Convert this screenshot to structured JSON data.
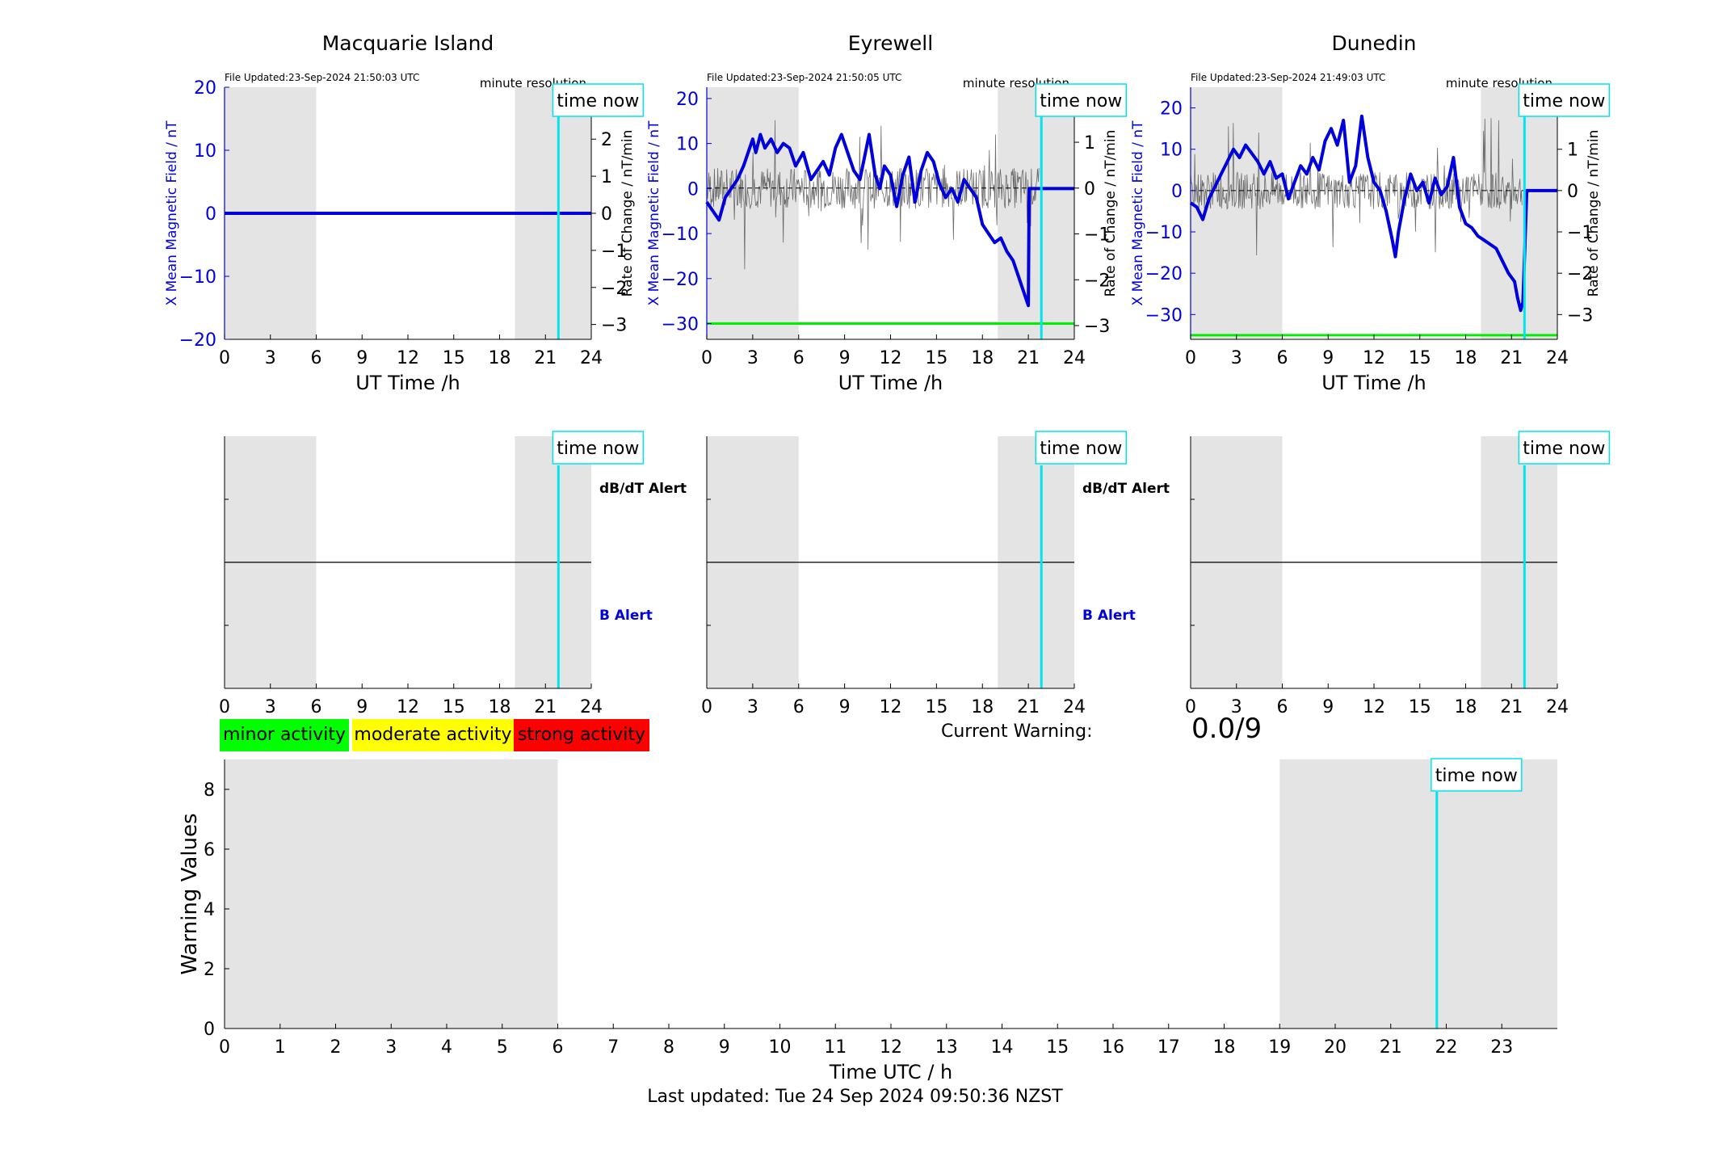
{
  "chart_data": [
    {
      "type": "line",
      "station": "Macquarie Island",
      "file_updated": "File Updated:23-Sep-2024 21:50:03 UTC",
      "resolution": "minute resolution",
      "xlabel": "UT Time /h",
      "ylabel_left": "X Mean Magnetic Field / nT",
      "ylabel_right": "Rate of Change / nT/min",
      "xlim": [
        0,
        24
      ],
      "xticks": [
        0,
        3,
        6,
        9,
        12,
        15,
        18,
        21,
        24
      ],
      "ylim_left": [
        -20,
        20
      ],
      "yticks_left": [
        -20,
        -10,
        0,
        10,
        20
      ],
      "ylim_right": [
        -3.4,
        3.4
      ],
      "yticks_right": [
        -3,
        -2,
        -1,
        0,
        1,
        2,
        3
      ],
      "night_bands": [
        [
          0,
          6
        ],
        [
          19,
          24
        ]
      ],
      "time_now": 21.85,
      "time_now_label": "time now",
      "threshold": null,
      "series": [
        {
          "role": "field",
          "x": [
            0,
            24
          ],
          "y": [
            0,
            0
          ],
          "color": "#0000dd"
        }
      ]
    },
    {
      "type": "line",
      "station": "Eyrewell",
      "file_updated": "File Updated:23-Sep-2024 21:50:05 UTC",
      "resolution": "minute resolution",
      "xlabel": "UT Time /h",
      "ylabel_left": "X Mean Magnetic Field / nT",
      "ylabel_right": "Rate of Change / nT/min",
      "xlim": [
        0,
        24
      ],
      "xticks": [
        0,
        3,
        6,
        9,
        12,
        15,
        18,
        21,
        24
      ],
      "ylim_left": [
        -33.5,
        22.5
      ],
      "yticks_left": [
        -30,
        -20,
        -10,
        0,
        10,
        20
      ],
      "ylim_right": [
        -3.3,
        2.2
      ],
      "yticks_right": [
        -3,
        -2,
        -1,
        0,
        1,
        2
      ],
      "night_bands": [
        [
          0,
          6
        ],
        [
          19,
          24
        ]
      ],
      "time_now": 21.85,
      "time_now_label": "time now",
      "threshold": -30,
      "series": [
        {
          "role": "field",
          "color": "#0000dd",
          "x": [
            0,
            0.4,
            0.8,
            1.2,
            1.6,
            2.0,
            2.4,
            2.8,
            3.0,
            3.2,
            3.5,
            3.8,
            4.2,
            4.6,
            5.0,
            5.4,
            5.8,
            6.3,
            6.8,
            7.2,
            7.6,
            8.0,
            8.4,
            8.8,
            9.2,
            9.6,
            10.0,
            10.3,
            10.6,
            11.0,
            11.3,
            11.6,
            12.0,
            12.4,
            12.8,
            13.2,
            13.6,
            14.0,
            14.4,
            14.8,
            15.2,
            15.6,
            16.0,
            16.4,
            16.8,
            17.2,
            17.6,
            18.0,
            18.4,
            18.8,
            19.2,
            19.6,
            20.0,
            20.4,
            20.8,
            21.0,
            21.05,
            21.3,
            22.0,
            24.0
          ],
          "y": [
            -3,
            -5,
            -7,
            -2,
            0,
            2,
            5,
            9,
            11,
            8,
            12,
            9,
            11,
            8,
            10,
            9,
            5,
            8,
            2,
            4,
            6,
            3,
            9,
            12,
            8,
            4,
            2,
            7,
            12,
            3,
            0,
            5,
            3,
            -4,
            3,
            7,
            -3,
            4,
            8,
            6,
            1,
            -2,
            0,
            -3,
            2,
            0,
            -2,
            -8,
            -10,
            -12,
            -11,
            -14,
            -16,
            -20,
            -24,
            -26,
            0,
            0,
            0,
            0
          ]
        },
        {
          "role": "rate",
          "color": "#555555",
          "baseline": 0
        }
      ]
    },
    {
      "type": "line",
      "station": "Dunedin",
      "file_updated": "File Updated:23-Sep-2024 21:49:03 UTC",
      "resolution": "minute resolution",
      "xlabel": "UT Time /h",
      "ylabel_left": "X Mean Magnetic Field / nT",
      "ylabel_right": "Rate of Change / nT/min",
      "xlim": [
        0,
        24
      ],
      "xticks": [
        0,
        3,
        6,
        9,
        12,
        15,
        18,
        21,
        24
      ],
      "ylim_left": [
        -36,
        25
      ],
      "yticks_left": [
        -30,
        -20,
        -10,
        0,
        10,
        20
      ],
      "ylim_right": [
        -3.6,
        2.5
      ],
      "yticks_right": [
        -3,
        -2,
        -1,
        0,
        1,
        2
      ],
      "night_bands": [
        [
          0,
          6
        ],
        [
          19,
          24
        ]
      ],
      "time_now": 21.85,
      "time_now_label": "time now",
      "threshold": -35,
      "series": [
        {
          "role": "field",
          "color": "#0000dd",
          "x": [
            0,
            0.4,
            0.8,
            1.2,
            1.6,
            2.0,
            2.4,
            2.8,
            3.2,
            3.6,
            4.0,
            4.4,
            4.8,
            5.2,
            5.6,
            6.0,
            6.4,
            6.8,
            7.2,
            7.6,
            8.0,
            8.4,
            8.8,
            9.2,
            9.6,
            10.0,
            10.4,
            10.8,
            11.2,
            11.6,
            12.0,
            12.4,
            12.8,
            13.2,
            13.4,
            13.6,
            14.0,
            14.4,
            14.8,
            15.2,
            15.6,
            16.0,
            16.4,
            16.8,
            17.2,
            17.6,
            18.0,
            18.4,
            18.8,
            19.2,
            19.6,
            20.0,
            20.4,
            20.8,
            21.2,
            21.4,
            21.6,
            21.75,
            22.0,
            24.0
          ],
          "y": [
            -3,
            -4,
            -7,
            -2,
            1,
            4,
            7,
            10,
            8,
            11,
            9,
            7,
            4,
            7,
            3,
            4,
            -2,
            2,
            6,
            4,
            8,
            5,
            12,
            15,
            11,
            17,
            2,
            6,
            18,
            8,
            2,
            0,
            -5,
            -12,
            -16,
            -10,
            -2,
            4,
            0,
            2,
            -3,
            3,
            -1,
            1,
            8,
            -4,
            -8,
            -9,
            -11,
            -12,
            -13,
            -14,
            -17,
            -20,
            -22,
            -26,
            -29,
            -27,
            0,
            0
          ]
        },
        {
          "role": "rate",
          "color": "#555555",
          "baseline": 0
        }
      ]
    },
    {
      "type": "line",
      "panel": "alerts",
      "labels": [
        "dB/dT Alert",
        "B Alert"
      ],
      "xlim": [
        0,
        24
      ],
      "xticks": [
        0,
        3,
        6,
        9,
        12,
        15,
        18,
        21,
        24
      ],
      "night_bands": [
        [
          0,
          6
        ],
        [
          19,
          24
        ]
      ],
      "time_now": 21.85,
      "time_now_label": "time now",
      "divider_fraction": 0.5
    },
    {
      "type": "bar",
      "panel": "warnings",
      "xlabel": "Time UTC / h",
      "ylabel": "Warning Values",
      "xlim": [
        0,
        24
      ],
      "xticks": [
        0,
        1,
        2,
        3,
        4,
        5,
        6,
        7,
        8,
        9,
        10,
        11,
        12,
        13,
        14,
        15,
        16,
        17,
        18,
        19,
        20,
        21,
        22,
        23
      ],
      "ylim": [
        0,
        9
      ],
      "yticks": [
        0,
        2,
        4,
        6,
        8
      ],
      "night_bands": [
        [
          0,
          6
        ],
        [
          19,
          24
        ]
      ],
      "time_now": 21.83,
      "time_now_label": "time now",
      "values": []
    }
  ],
  "legend": [
    {
      "label": "minor activity",
      "color": "#00ff00"
    },
    {
      "label": "moderate activity",
      "color": "#ffff00"
    },
    {
      "label": "strong activity",
      "color": "#ff0000"
    }
  ],
  "current_warning": {
    "label": "Current Warning:",
    "value": "0.0/9"
  },
  "last_updated": "Last updated: Tue 24 Sep 2024 09:50:36 NZST",
  "colors": {
    "night": "#e4e4e4",
    "time_now": "#00e5ee",
    "field": "#0000dd",
    "threshold": "#00ee00",
    "rate": "#555555",
    "b_alert": "#0000dd"
  }
}
